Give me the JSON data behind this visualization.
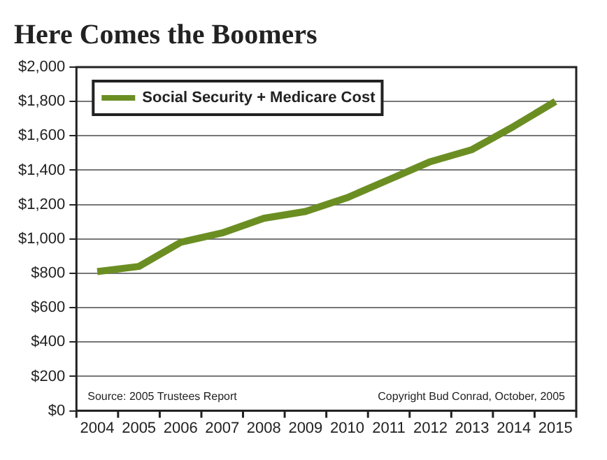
{
  "chart_data": {
    "type": "line",
    "title": "Here Comes the Boomers",
    "categories": [
      "2004",
      "2005",
      "2006",
      "2007",
      "2008",
      "2009",
      "2010",
      "2011",
      "2012",
      "2013",
      "2014",
      "2015"
    ],
    "series": [
      {
        "name": "Social Security + Medicare Cost",
        "color": "#6b8e23",
        "values": [
          810,
          840,
          980,
          1035,
          1120,
          1160,
          1240,
          1345,
          1450,
          1520,
          1655,
          1800
        ]
      }
    ],
    "ylim": [
      0,
      2000
    ],
    "yticks": [
      {
        "value": 0,
        "label": "$0"
      },
      {
        "value": 200,
        "label": "$200"
      },
      {
        "value": 400,
        "label": "$400"
      },
      {
        "value": 600,
        "label": "$600"
      },
      {
        "value": 800,
        "label": "$800"
      },
      {
        "value": 1000,
        "label": "$1,000"
      },
      {
        "value": 1200,
        "label": "$1,200"
      },
      {
        "value": 1400,
        "label": "$1,400"
      },
      {
        "value": 1600,
        "label": "$1,600"
      },
      {
        "value": 1800,
        "label": "$1,800"
      },
      {
        "value": 2000,
        "label": "$2,000"
      }
    ],
    "grid": "y",
    "legend": "top left",
    "marker": "none",
    "line_style": "solid",
    "annotations": [
      "Source: 2005 Trustees Report",
      "Copyright Bud Conrad, October, 2005"
    ]
  }
}
